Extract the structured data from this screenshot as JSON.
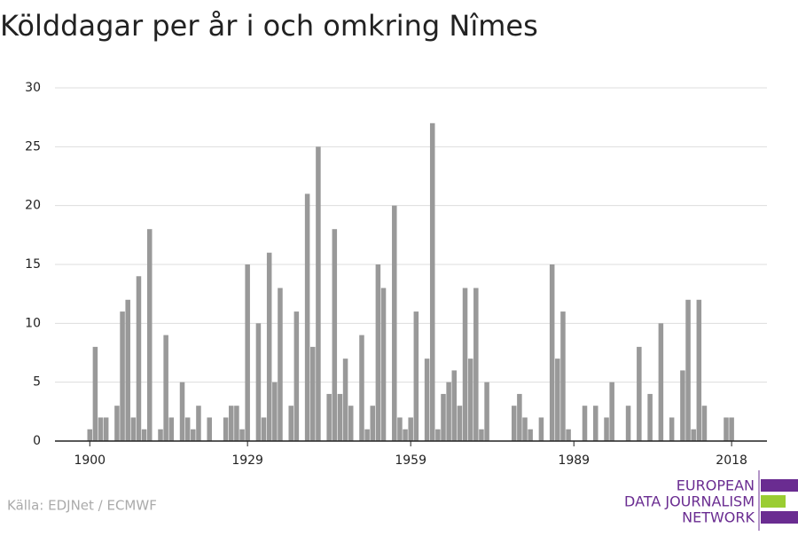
{
  "chart_data": {
    "type": "bar",
    "title": "Kölddagar per år i och omkring Nîmes",
    "source": "Källa: EDJNet / ECMWF",
    "logo": [
      "EUROPEAN",
      "DATA JOURNALISM",
      "NETWORK"
    ],
    "color": "#999999",
    "x": [
      1900,
      1901,
      1902,
      1903,
      1904,
      1905,
      1906,
      1907,
      1908,
      1909,
      1910,
      1911,
      1912,
      1913,
      1914,
      1915,
      1916,
      1917,
      1918,
      1919,
      1920,
      1921,
      1922,
      1923,
      1924,
      1925,
      1926,
      1927,
      1928,
      1929,
      1930,
      1931,
      1932,
      1933,
      1934,
      1935,
      1936,
      1937,
      1938,
      1939,
      1940,
      1941,
      1942,
      1943,
      1944,
      1945,
      1946,
      1947,
      1948,
      1949,
      1950,
      1951,
      1952,
      1953,
      1954,
      1955,
      1956,
      1957,
      1958,
      1959,
      1960,
      1961,
      1962,
      1963,
      1964,
      1965,
      1966,
      1967,
      1968,
      1969,
      1970,
      1971,
      1972,
      1973,
      1974,
      1975,
      1976,
      1977,
      1978,
      1979,
      1980,
      1981,
      1982,
      1983,
      1984,
      1985,
      1986,
      1987,
      1988,
      1989,
      1990,
      1991,
      1992,
      1993,
      1994,
      1995,
      1996,
      1997,
      1998,
      1999,
      2000,
      2001,
      2002,
      2003,
      2004,
      2005,
      2006,
      2007,
      2008,
      2009,
      2010,
      2011,
      2012,
      2013,
      2014,
      2015,
      2016,
      2017,
      2018
    ],
    "values": [
      1,
      8,
      2,
      2,
      0,
      3,
      11,
      12,
      2,
      14,
      1,
      18,
      0,
      1,
      9,
      2,
      0,
      5,
      2,
      1,
      3,
      0,
      2,
      0,
      0,
      2,
      3,
      3,
      1,
      15,
      0,
      10,
      2,
      16,
      5,
      13,
      0,
      3,
      11,
      0,
      21,
      8,
      25,
      0,
      4,
      18,
      4,
      7,
      3,
      0,
      9,
      1,
      3,
      15,
      13,
      0,
      20,
      2,
      1,
      2,
      11,
      0,
      7,
      27,
      1,
      4,
      5,
      6,
      3,
      13,
      7,
      13,
      1,
      5,
      0,
      0,
      0,
      0,
      3,
      4,
      2,
      1,
      0,
      2,
      0,
      15,
      7,
      11,
      1,
      0,
      0,
      3,
      0,
      3,
      0,
      2,
      5,
      0,
      0,
      3,
      0,
      8,
      0,
      4,
      0,
      10,
      0,
      2,
      0,
      6,
      12,
      1,
      12,
      3,
      0,
      0,
      0,
      2,
      2
    ],
    "xlim": [
      1893.6,
      2024.5
    ],
    "xticks": [
      1900,
      1929,
      1959,
      1989,
      2018
    ],
    "ylim": [
      0,
      30
    ],
    "yticks": [
      0,
      5,
      10,
      15,
      20,
      25,
      30
    ],
    "grid": true
  }
}
